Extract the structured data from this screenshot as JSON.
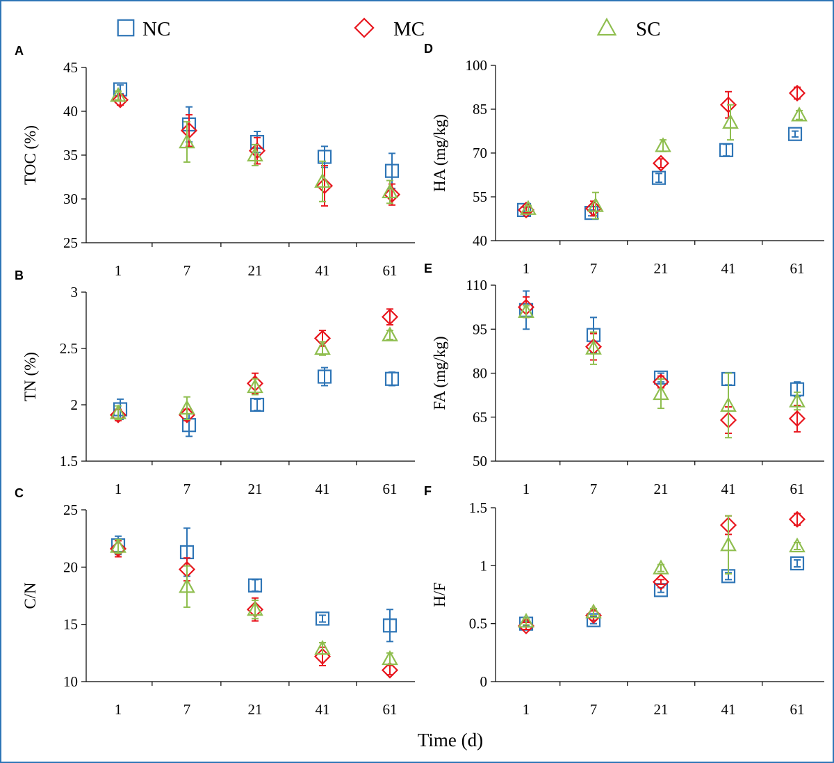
{
  "colors": {
    "NC": "#2e75b6",
    "MC": "#e8161e",
    "SC": "#8fbe4f"
  },
  "legend": [
    {
      "key": "NC",
      "label": "NC",
      "marker": "square"
    },
    {
      "key": "MC",
      "label": "MC",
      "marker": "diamond"
    },
    {
      "key": "SC",
      "label": "SC",
      "marker": "triangle"
    }
  ],
  "shared_xlabel": "Time (d)",
  "chart_data": [
    {
      "id": "A",
      "type": "scatter",
      "letter": "A",
      "ylabel": "TOC (%)",
      "categories": [
        "1",
        "7",
        "21",
        "41",
        "61"
      ],
      "ylim": [
        25,
        45
      ],
      "yticks": [
        25,
        30,
        35,
        40,
        45
      ],
      "series": [
        {
          "name": "NC",
          "values": [
            42.5,
            38.5,
            36.5,
            34.8,
            33.2
          ],
          "err": [
            0.5,
            2.0,
            1.2,
            1.2,
            2.0
          ]
        },
        {
          "name": "MC",
          "values": [
            41.3,
            37.8,
            35.5,
            31.5,
            30.5
          ],
          "err": [
            0.6,
            1.8,
            1.5,
            2.3,
            1.2
          ]
        },
        {
          "name": "SC",
          "values": [
            41.8,
            36.5,
            35.0,
            32.0,
            30.8
          ],
          "err": [
            0.5,
            2.3,
            1.2,
            2.3,
            1.3
          ]
        }
      ]
    },
    {
      "id": "B",
      "type": "scatter",
      "letter": "B",
      "ylabel": "TN (%)",
      "categories": [
        "1",
        "7",
        "21",
        "41",
        "61"
      ],
      "ylim": [
        1.5,
        3
      ],
      "yticks": [
        1.5,
        2,
        2.5,
        3
      ],
      "series": [
        {
          "name": "NC",
          "values": [
            1.96,
            1.82,
            2.0,
            2.25,
            2.23
          ],
          "err": [
            0.09,
            0.1,
            0.05,
            0.08,
            0.06
          ]
        },
        {
          "name": "MC",
          "values": [
            1.91,
            1.91,
            2.19,
            2.59,
            2.78
          ],
          "err": [
            0.05,
            0.05,
            0.09,
            0.07,
            0.07
          ]
        },
        {
          "name": "SC",
          "values": [
            1.93,
            1.97,
            2.16,
            2.5,
            2.62
          ],
          "err": [
            0.06,
            0.1,
            0.07,
            0.06,
            0.04
          ]
        }
      ]
    },
    {
      "id": "C",
      "type": "scatter",
      "letter": "C",
      "ylabel": "C/N",
      "categories": [
        "1",
        "7",
        "21",
        "41",
        "61"
      ],
      "ylim": [
        10,
        25
      ],
      "yticks": [
        10,
        15,
        20,
        25
      ],
      "series": [
        {
          "name": "NC",
          "values": [
            21.9,
            21.3,
            18.4,
            15.5,
            14.9
          ],
          "err": [
            0.8,
            2.1,
            0.5,
            0.3,
            1.4
          ]
        },
        {
          "name": "MC",
          "values": [
            21.6,
            19.8,
            16.3,
            12.2,
            11.0
          ],
          "err": [
            0.7,
            1.0,
            1.0,
            0.8,
            0.4
          ]
        },
        {
          "name": "SC",
          "values": [
            21.8,
            18.3,
            16.3,
            12.9,
            12.0
          ],
          "err": [
            0.6,
            1.8,
            0.8,
            0.5,
            0.5
          ]
        }
      ]
    },
    {
      "id": "D",
      "type": "scatter",
      "letter": "D",
      "ylabel": "HA (mg/kg)",
      "categories": [
        "1",
        "7",
        "21",
        "41",
        "61"
      ],
      "ylim": [
        40,
        100
      ],
      "yticks": [
        40,
        55,
        70,
        85,
        100
      ],
      "series": [
        {
          "name": "NC",
          "values": [
            50.5,
            49.5,
            61.5,
            71.0,
            76.5
          ],
          "err": [
            1.0,
            1.0,
            1.5,
            2.0,
            1.0
          ]
        },
        {
          "name": "MC",
          "values": [
            50.5,
            51.0,
            66.5,
            86.5,
            90.5
          ],
          "err": [
            1.0,
            2.5,
            1.5,
            4.5,
            2.0
          ]
        },
        {
          "name": "SC",
          "values": [
            51.0,
            52.0,
            72.5,
            80.5,
            83.0
          ],
          "err": [
            1.0,
            4.5,
            2.0,
            6.0,
            1.5
          ]
        }
      ]
    },
    {
      "id": "E",
      "type": "scatter",
      "letter": "E",
      "ylabel": "FA (mg/kg)",
      "categories": [
        "1",
        "7",
        "21",
        "41",
        "61"
      ],
      "ylim": [
        50,
        110
      ],
      "yticks": [
        50,
        65,
        80,
        95,
        110
      ],
      "series": [
        {
          "name": "NC",
          "values": [
            101.5,
            93.0,
            78.5,
            78.0,
            74.5
          ],
          "err": [
            6.5,
            6.0,
            1.5,
            2.0,
            2.5
          ]
        },
        {
          "name": "MC",
          "values": [
            102.5,
            89.0,
            77.0,
            64.0,
            64.5
          ],
          "err": [
            3.5,
            4.5,
            2.0,
            4.5,
            4.5
          ]
        },
        {
          "name": "SC",
          "values": [
            101.0,
            88.5,
            73.0,
            69.0,
            70.5
          ],
          "err": [
            2.0,
            5.5,
            5.0,
            11.0,
            3.0
          ]
        }
      ]
    },
    {
      "id": "F",
      "type": "scatter",
      "letter": "F",
      "ylabel": "H/F",
      "categories": [
        "1",
        "7",
        "21",
        "41",
        "61"
      ],
      "ylim": [
        0,
        1.5
      ],
      "yticks": [
        0,
        0.5,
        1,
        1.5
      ],
      "series": [
        {
          "name": "NC",
          "values": [
            0.5,
            0.53,
            0.79,
            0.91,
            1.02
          ],
          "err": [
            0.02,
            0.03,
            0.02,
            0.03,
            0.03
          ]
        },
        {
          "name": "MC",
          "values": [
            0.48,
            0.57,
            0.86,
            1.35,
            1.4
          ],
          "err": [
            0.03,
            0.04,
            0.02,
            0.08,
            0.05
          ]
        },
        {
          "name": "SC",
          "values": [
            0.52,
            0.6,
            0.98,
            1.18,
            1.17
          ],
          "err": [
            0.03,
            0.03,
            0.03,
            0.25,
            0.03
          ]
        }
      ]
    }
  ]
}
